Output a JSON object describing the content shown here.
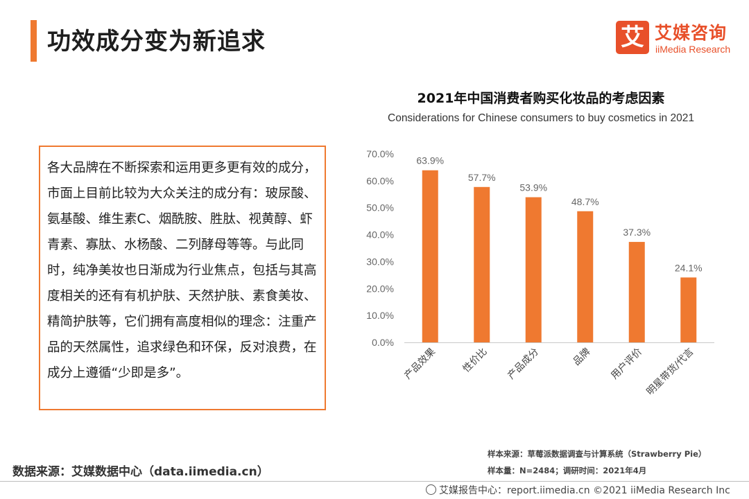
{
  "header": {
    "title": "功效成分变为新追求",
    "accent_color": "#ef7930"
  },
  "logo": {
    "mark": "艾",
    "name_cn": "艾媒咨询",
    "name_en": "iiMedia Research",
    "color": "#e8502a"
  },
  "text_box": {
    "content": "各大品牌在不断探索和运用更多更有效的成分，市面上目前比较为大众关注的成分有：玻尿酸、氨基酸、维生素C、烟酰胺、胜肽、视黄醇、虾青素、寡肽、水杨酸、二列酵母等等。与此同时，纯净美妆也日渐成为行业焦点，包括与其高度相关的还有有机护肤、天然护肤、素食美妆、精简护肤等，它们拥有高度相似的理念：注重产品的天然属性，追求绿色和环保，反对浪费，在成分上遵循“少即是多”。"
  },
  "source": {
    "label": "数据来源：艾媒数据中心（data.iimedia.cn）"
  },
  "chart_data": {
    "type": "bar",
    "title": "2021年中国消费者购买化妆品的考虑因素",
    "subtitle": "Considerations for Chinese consumers to buy cosmetics in 2021",
    "categories": [
      "产品效果",
      "性价比",
      "产品成分",
      "品牌",
      "用户评价",
      "明星带货/代言"
    ],
    "values": [
      63.9,
      57.7,
      53.9,
      48.7,
      37.3,
      24.1
    ],
    "value_labels": [
      "63.9%",
      "57.7%",
      "53.9%",
      "48.7%",
      "37.3%",
      "24.1%"
    ],
    "ylim": [
      0,
      70
    ],
    "yticks": [
      "0.0%",
      "10.0%",
      "20.0%",
      "30.0%",
      "40.0%",
      "50.0%",
      "60.0%",
      "70.0%"
    ],
    "grid": false,
    "legend": "none",
    "bar_color": "#ef7930"
  },
  "notes": {
    "sample_source": "样本来源：草莓派数据调查与计算系统（Strawberry Pie）",
    "sample_info": "样本量：N=2484；调研时间：2021年4月"
  },
  "footer": {
    "icon": "globe-icon",
    "text": "艾媒报告中心：report.iimedia.cn ©2021 iiMedia Research Inc"
  }
}
